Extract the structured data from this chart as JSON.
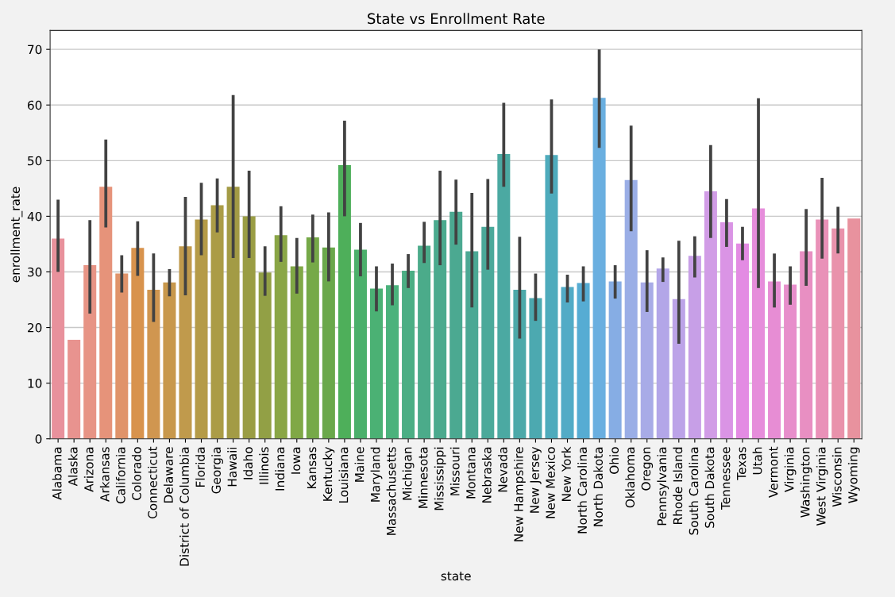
{
  "chart_data": {
    "type": "bar",
    "title": "State vs Enrollment Rate",
    "xlabel": "state",
    "ylabel": "enrollment_rate",
    "categories": [
      "Alabama",
      "Alaska",
      "Arizona",
      "Arkansas",
      "California",
      "Colorado",
      "Connecticut",
      "Delaware",
      "District of Columbia",
      "Florida",
      "Georgia",
      "Hawaii",
      "Idaho",
      "Illinois",
      "Indiana",
      "Iowa",
      "Kansas",
      "Kentucky",
      "Louisiana",
      "Maine",
      "Maryland",
      "Massachusetts",
      "Michigan",
      "Minnesota",
      "Mississippi",
      "Missouri",
      "Montana",
      "Nebraska",
      "Nevada",
      "New Hampshire",
      "New Jersey",
      "New Mexico",
      "New York",
      "North Carolina",
      "North Dakota",
      "Ohio",
      "Oklahoma",
      "Oregon",
      "Pennsylvania",
      "Rhode Island",
      "South Carolina",
      "South Dakota",
      "Tennessee",
      "Texas",
      "Utah",
      "Vermont",
      "Virginia",
      "Washington",
      "West Virginia",
      "Wisconsin",
      "Wyoming"
    ],
    "values": [
      36,
      17.8,
      31.2,
      45.3,
      29.7,
      34.3,
      26.8,
      28.1,
      34.6,
      39.4,
      42,
      45.3,
      40,
      29.9,
      36.6,
      31,
      36.2,
      34.4,
      49.2,
      34,
      27,
      27.6,
      30.2,
      34.7,
      39.3,
      40.8,
      33.7,
      38.1,
      51.2,
      26.8,
      25.3,
      51,
      27.3,
      28,
      61.3,
      28.3,
      46.5,
      28.1,
      30.6,
      25.1,
      32.9,
      44.5,
      38.9,
      35.1,
      41.4,
      28.3,
      27.7,
      33.7,
      39.4,
      37.8,
      39.6
    ],
    "errors": [
      [
        30,
        43
      ],
      null,
      [
        22.5,
        39.3
      ],
      [
        38,
        53.8
      ],
      [
        26.3,
        33
      ],
      [
        29.3,
        39.1
      ],
      [
        21,
        33.3
      ],
      [
        25.6,
        30.5
      ],
      [
        25.8,
        43.5
      ],
      [
        33,
        46
      ],
      [
        37.1,
        46.8
      ],
      [
        32.5,
        61.8
      ],
      [
        32.5,
        48.2
      ],
      [
        25.7,
        34.6
      ],
      [
        31.8,
        41.8
      ],
      [
        26.1,
        36.1
      ],
      [
        31.7,
        40.3
      ],
      [
        28.3,
        40.7
      ],
      [
        40,
        57.2
      ],
      [
        29.2,
        38.8
      ],
      [
        22.9,
        31
      ],
      [
        24,
        31.5
      ],
      [
        27.1,
        33.2
      ],
      [
        31.6,
        39
      ],
      [
        31.2,
        48.2
      ],
      [
        34.9,
        46.6
      ],
      [
        23.6,
        44.2
      ],
      [
        30.4,
        46.7
      ],
      [
        45.3,
        60.4
      ],
      [
        18,
        36.3
      ],
      [
        21.2,
        29.7
      ],
      [
        44.1,
        61
      ],
      [
        24.5,
        29.5
      ],
      [
        24.7,
        31
      ],
      [
        52.3,
        70
      ],
      [
        25.2,
        31.2
      ],
      [
        37.3,
        56.3
      ],
      [
        22.8,
        33.9
      ],
      [
        28.2,
        32.6
      ],
      [
        17.1,
        35.6
      ],
      [
        29,
        36.4
      ],
      [
        36.1,
        52.8
      ],
      [
        34.5,
        43.1
      ],
      [
        32.1,
        38.1
      ],
      [
        27.1,
        61.2
      ],
      [
        23.6,
        33.3
      ],
      [
        24.1,
        31
      ],
      [
        27.5,
        41.3
      ],
      [
        32.4,
        46.9
      ],
      [
        33.3,
        41.7
      ],
      null
    ],
    "colors": [
      "#e8919c",
      "#e8938f",
      "#e79485",
      "#e6937a",
      "#e0936a",
      "#d8934d",
      "#d09650",
      "#c8984c",
      "#c09a4c",
      "#b59b48",
      "#ab9c46",
      "#a39b45",
      "#9a9d44",
      "#92a045",
      "#8aa646",
      "#80a846",
      "#76a948",
      "#6aa84b",
      "#4eaf5a",
      "#4bb06b",
      "#4bb174",
      "#4bb27c",
      "#4bae84",
      "#4bab8a",
      "#4baa8e",
      "#4ba991",
      "#4ba894",
      "#4ba99a",
      "#4ba9a2",
      "#4ca9a9",
      "#4ca9b0",
      "#4eabbc",
      "#52abc6",
      "#56acd3",
      "#6aafe0",
      "#86ade4",
      "#9aaee6",
      "#a8abe7",
      "#b3a6e8",
      "#bca3e8",
      "#c79fe7",
      "#d19ce6",
      "#da94e5",
      "#e38be3",
      "#e68ddb",
      "#e78dd4",
      "#e78ecb",
      "#e88fc2",
      "#e991b8",
      "#e992ab",
      "#e8929e"
    ],
    "ylim": [
      0,
      73.4
    ],
    "yticks": [
      0,
      10,
      20,
      30,
      40,
      50,
      60,
      70
    ],
    "grid": "y"
  }
}
